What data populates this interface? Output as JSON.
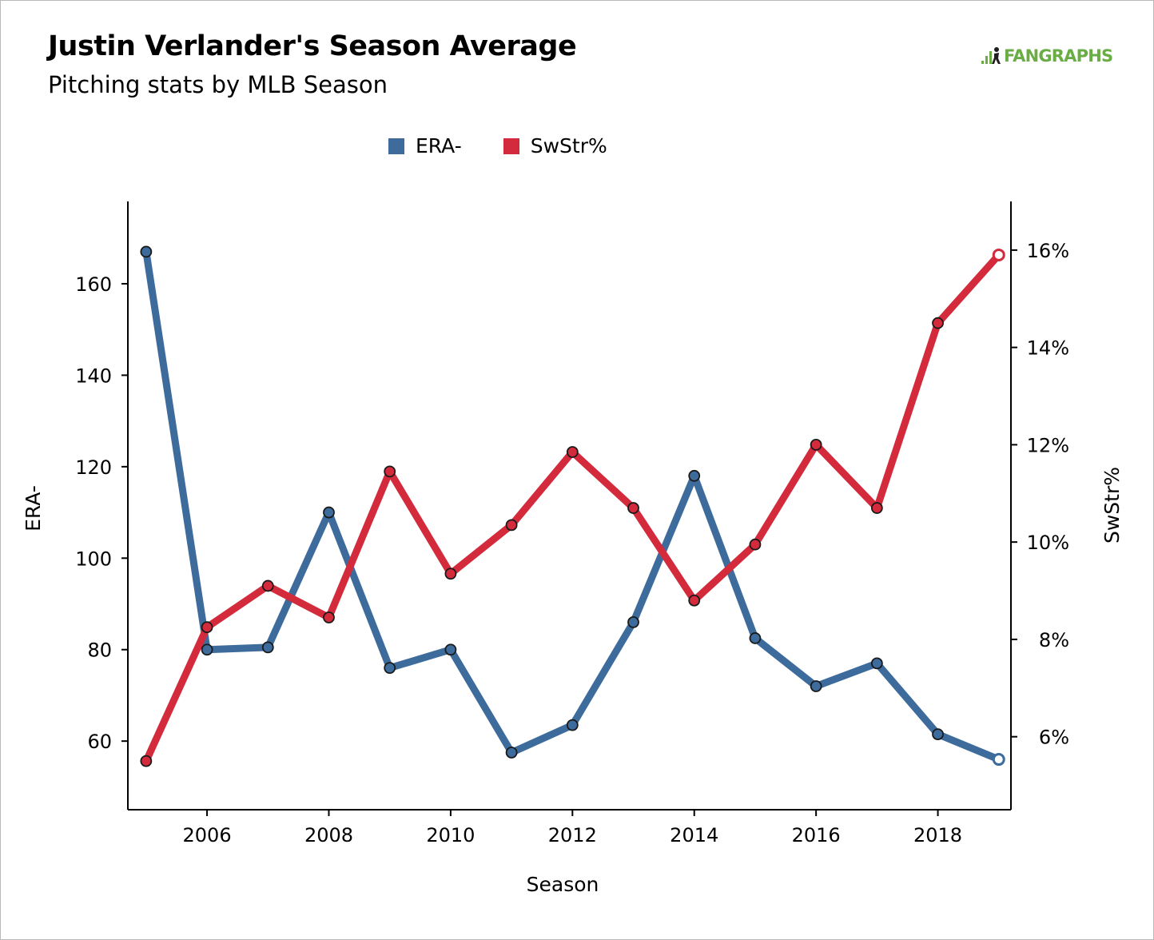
{
  "chart_data": {
    "type": "line",
    "title": "Justin Verlander's Season Average",
    "subtitle": "Pitching stats by MLB Season",
    "xlabel": "Season",
    "ylabel_left": "ERA-",
    "ylabel_right": "SwStr%",
    "x": [
      2005,
      2006,
      2007,
      2008,
      2009,
      2010,
      2011,
      2012,
      2013,
      2014,
      2015,
      2016,
      2017,
      2018,
      2019
    ],
    "xlim": [
      2004.7,
      2019.2
    ],
    "x_ticks": [
      "2006",
      "2008",
      "2010",
      "2012",
      "2014",
      "2016",
      "2018"
    ],
    "ylim_left": [
      45,
      178
    ],
    "y_ticks_left": [
      "60",
      "80",
      "100",
      "120",
      "140",
      "160"
    ],
    "ylim_right": [
      4.5,
      17.0
    ],
    "y_ticks_right": [
      "6%",
      "8%",
      "10%",
      "12%",
      "14%",
      "16%"
    ],
    "series": [
      {
        "name": "ERA-",
        "axis": "left",
        "color": "#3d6b9c",
        "values": [
          167,
          80,
          80.5,
          110,
          76,
          80,
          57.5,
          63.5,
          86,
          118,
          82.5,
          72,
          77,
          61.5,
          56
        ]
      },
      {
        "name": "SwStr%",
        "axis": "right",
        "color": "#d32b3c",
        "values": [
          5.5,
          8.25,
          9.1,
          8.45,
          11.45,
          9.35,
          10.35,
          11.85,
          10.7,
          8.8,
          9.95,
          12.0,
          10.7,
          14.5,
          15.9
        ]
      }
    ],
    "grid": false,
    "legend_position": "top-center",
    "last_point_style": "hollow"
  },
  "branding": {
    "logo_icon": "fangraphs-logo-icon",
    "logo_text": "FANGRAPHS"
  }
}
